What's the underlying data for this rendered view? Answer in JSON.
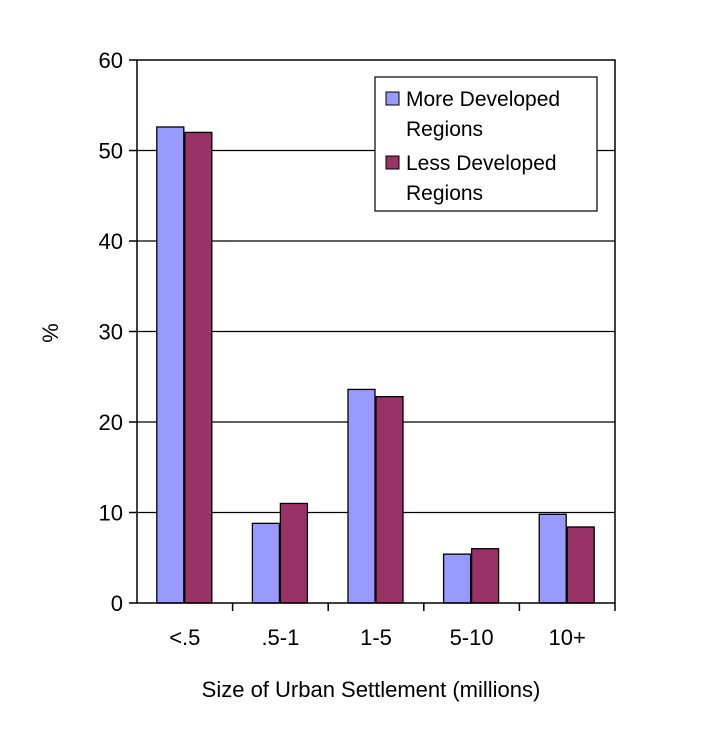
{
  "chart_data": {
    "type": "bar",
    "title": "",
    "xlabel": "Size of Urban Settlement (millions)",
    "ylabel": "%",
    "categories": [
      "<.5",
      ".5-1",
      "1-5",
      "5-10",
      "10+"
    ],
    "series": [
      {
        "name": "More Developed Regions",
        "values": [
          52.6,
          8.8,
          23.6,
          5.4,
          9.8
        ],
        "color": "#9999ff"
      },
      {
        "name": "Less Developed Regions",
        "values": [
          52.0,
          11.0,
          22.8,
          6.0,
          8.4
        ],
        "color": "#993366"
      }
    ],
    "ylim": [
      0,
      60
    ],
    "yticks": [
      "0",
      "10",
      "20",
      "30",
      "40",
      "50",
      "60"
    ],
    "grid": true,
    "legend_position": "top-right",
    "legend": {
      "entries": [
        {
          "line1": "More Developed",
          "line2": "Regions"
        },
        {
          "line1": "Less Developed",
          "line2": "Regions"
        }
      ]
    }
  }
}
